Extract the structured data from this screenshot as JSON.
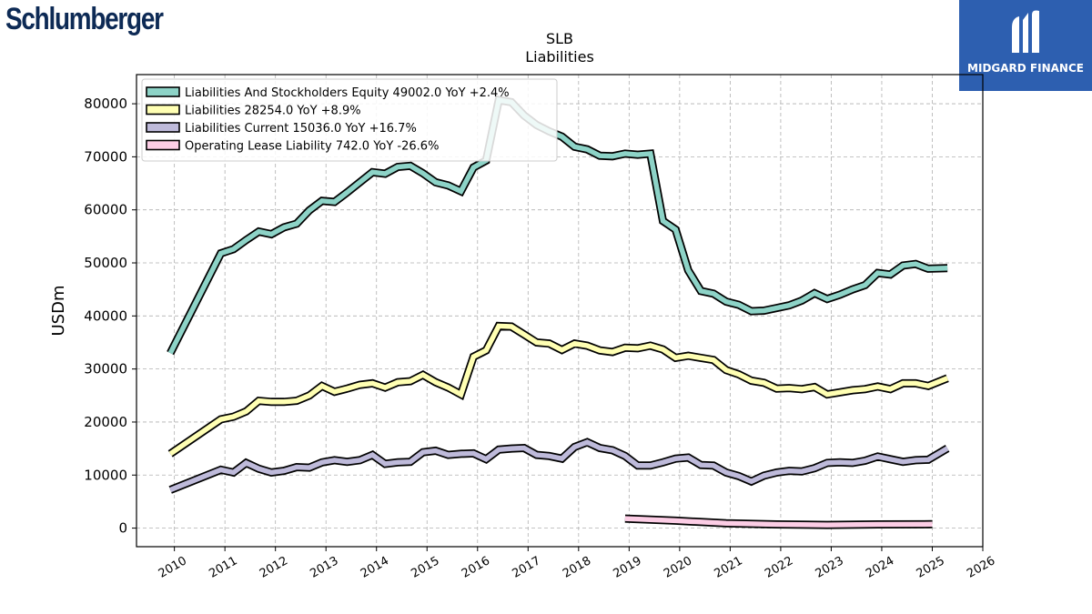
{
  "header": {
    "company_logo_text": "Schlumberger",
    "company_logo_color": "#0d2a55",
    "publisher_badge_text": "MIDGARD FINANCE",
    "publisher_badge_color": "#2d5fb0"
  },
  "chart_data": {
    "type": "line",
    "title": "SLB",
    "subtitle": "Liabilities",
    "xlabel": "",
    "ylabel": "USDm",
    "xlim": [
      2009.25,
      2026.0
    ],
    "ylim": [
      -3500,
      85500
    ],
    "x_ticks": [
      2010,
      2011,
      2012,
      2013,
      2014,
      2015,
      2016,
      2017,
      2018,
      2019,
      2020,
      2021,
      2022,
      2023,
      2024,
      2025,
      2026
    ],
    "y_ticks": [
      0,
      10000,
      20000,
      30000,
      40000,
      50000,
      60000,
      70000,
      80000
    ],
    "grid": true,
    "legend_position": "top-left",
    "series": [
      {
        "name": "Liabilities And Stockholders Equity",
        "legend_label": "Liabilities And Stockholders Equity  49002.0 YoY +2.4%",
        "color": "#8dd3c7",
        "points": [
          [
            2009.92,
            33000
          ],
          [
            2010.92,
            51800
          ],
          [
            2011.17,
            52600
          ],
          [
            2011.42,
            54300
          ],
          [
            2011.67,
            55900
          ],
          [
            2011.92,
            55400
          ],
          [
            2012.17,
            56700
          ],
          [
            2012.42,
            57400
          ],
          [
            2012.67,
            59900
          ],
          [
            2012.92,
            61700
          ],
          [
            2013.17,
            61500
          ],
          [
            2013.42,
            63300
          ],
          [
            2013.67,
            65200
          ],
          [
            2013.92,
            67100
          ],
          [
            2014.17,
            66800
          ],
          [
            2014.42,
            68100
          ],
          [
            2014.67,
            68300
          ],
          [
            2014.92,
            66900
          ],
          [
            2015.17,
            65200
          ],
          [
            2015.42,
            64600
          ],
          [
            2015.67,
            63500
          ],
          [
            2015.92,
            68000
          ],
          [
            2016.17,
            69300
          ],
          [
            2016.42,
            80700
          ],
          [
            2016.67,
            80300
          ],
          [
            2016.92,
            77800
          ],
          [
            2017.17,
            76000
          ],
          [
            2017.42,
            74800
          ],
          [
            2017.67,
            73800
          ],
          [
            2017.92,
            71900
          ],
          [
            2018.17,
            71400
          ],
          [
            2018.42,
            70200
          ],
          [
            2018.67,
            70100
          ],
          [
            2018.92,
            70600
          ],
          [
            2019.17,
            70400
          ],
          [
            2019.42,
            70600
          ],
          [
            2019.67,
            57900
          ],
          [
            2019.92,
            56300
          ],
          [
            2020.17,
            48600
          ],
          [
            2020.42,
            44700
          ],
          [
            2020.67,
            44200
          ],
          [
            2020.92,
            42700
          ],
          [
            2021.17,
            42100
          ],
          [
            2021.42,
            40900
          ],
          [
            2021.67,
            41000
          ],
          [
            2021.92,
            41500
          ],
          [
            2022.17,
            42000
          ],
          [
            2022.42,
            42900
          ],
          [
            2022.67,
            44300
          ],
          [
            2022.92,
            43200
          ],
          [
            2023.17,
            44000
          ],
          [
            2023.42,
            45000
          ],
          [
            2023.67,
            45800
          ],
          [
            2023.92,
            48100
          ],
          [
            2024.17,
            47800
          ],
          [
            2024.42,
            49500
          ],
          [
            2024.67,
            49800
          ],
          [
            2024.92,
            48900
          ],
          [
            2025.3,
            49002
          ]
        ]
      },
      {
        "name": "Liabilities",
        "legend_label": "Liabilities  28254.0 YoY +8.9%",
        "color": "#ffffb3",
        "points": [
          [
            2009.92,
            14000
          ],
          [
            2010.92,
            20500
          ],
          [
            2011.17,
            21000
          ],
          [
            2011.42,
            22000
          ],
          [
            2011.67,
            24000
          ],
          [
            2011.92,
            23800
          ],
          [
            2012.17,
            23800
          ],
          [
            2012.42,
            24000
          ],
          [
            2012.67,
            25000
          ],
          [
            2012.92,
            26800
          ],
          [
            2013.17,
            25700
          ],
          [
            2013.42,
            26300
          ],
          [
            2013.67,
            27000
          ],
          [
            2013.92,
            27300
          ],
          [
            2014.17,
            26500
          ],
          [
            2014.42,
            27500
          ],
          [
            2014.67,
            27700
          ],
          [
            2014.92,
            28900
          ],
          [
            2015.17,
            27500
          ],
          [
            2015.42,
            26500
          ],
          [
            2015.67,
            25200
          ],
          [
            2015.92,
            32300
          ],
          [
            2016.17,
            33500
          ],
          [
            2016.42,
            38100
          ],
          [
            2016.67,
            38000
          ],
          [
            2016.92,
            36500
          ],
          [
            2017.17,
            35000
          ],
          [
            2017.42,
            34800
          ],
          [
            2017.67,
            33600
          ],
          [
            2017.92,
            34800
          ],
          [
            2018.17,
            34400
          ],
          [
            2018.42,
            33500
          ],
          [
            2018.67,
            33200
          ],
          [
            2018.92,
            34000
          ],
          [
            2019.17,
            33900
          ],
          [
            2019.42,
            34400
          ],
          [
            2019.67,
            33700
          ],
          [
            2019.92,
            32100
          ],
          [
            2020.17,
            32500
          ],
          [
            2020.42,
            32100
          ],
          [
            2020.67,
            31700
          ],
          [
            2020.92,
            29800
          ],
          [
            2021.17,
            29000
          ],
          [
            2021.42,
            27800
          ],
          [
            2021.67,
            27400
          ],
          [
            2021.92,
            26300
          ],
          [
            2022.17,
            26400
          ],
          [
            2022.42,
            26200
          ],
          [
            2022.67,
            26600
          ],
          [
            2022.92,
            25200
          ],
          [
            2023.17,
            25600
          ],
          [
            2023.42,
            26000
          ],
          [
            2023.67,
            26200
          ],
          [
            2023.92,
            26700
          ],
          [
            2024.17,
            26200
          ],
          [
            2024.42,
            27300
          ],
          [
            2024.67,
            27300
          ],
          [
            2024.92,
            26800
          ],
          [
            2025.3,
            28254
          ]
        ]
      },
      {
        "name": "Liabilities Current",
        "legend_label": "Liabilities Current  15036.0 YoY +16.7%",
        "color": "#bebada",
        "points": [
          [
            2009.92,
            7200
          ],
          [
            2010.92,
            11000
          ],
          [
            2011.17,
            10500
          ],
          [
            2011.42,
            12300
          ],
          [
            2011.67,
            11200
          ],
          [
            2011.92,
            10500
          ],
          [
            2012.17,
            10800
          ],
          [
            2012.42,
            11500
          ],
          [
            2012.67,
            11400
          ],
          [
            2012.92,
            12400
          ],
          [
            2013.17,
            12800
          ],
          [
            2013.42,
            12500
          ],
          [
            2013.67,
            12800
          ],
          [
            2013.92,
            13800
          ],
          [
            2014.17,
            12100
          ],
          [
            2014.42,
            12400
          ],
          [
            2014.67,
            12500
          ],
          [
            2014.92,
            14300
          ],
          [
            2015.17,
            14600
          ],
          [
            2015.42,
            13800
          ],
          [
            2015.67,
            14000
          ],
          [
            2015.92,
            14100
          ],
          [
            2016.17,
            13000
          ],
          [
            2016.42,
            14800
          ],
          [
            2016.67,
            15000
          ],
          [
            2016.92,
            15100
          ],
          [
            2017.17,
            13800
          ],
          [
            2017.42,
            13600
          ],
          [
            2017.67,
            13100
          ],
          [
            2017.92,
            15300
          ],
          [
            2018.17,
            16200
          ],
          [
            2018.42,
            15100
          ],
          [
            2018.67,
            14700
          ],
          [
            2018.92,
            13600
          ],
          [
            2019.17,
            11800
          ],
          [
            2019.42,
            11800
          ],
          [
            2019.67,
            12400
          ],
          [
            2019.92,
            13100
          ],
          [
            2020.17,
            13300
          ],
          [
            2020.42,
            11900
          ],
          [
            2020.67,
            11800
          ],
          [
            2020.92,
            10500
          ],
          [
            2021.17,
            9800
          ],
          [
            2021.42,
            8800
          ],
          [
            2021.67,
            9900
          ],
          [
            2021.92,
            10500
          ],
          [
            2022.17,
            10800
          ],
          [
            2022.42,
            10700
          ],
          [
            2022.67,
            11300
          ],
          [
            2022.92,
            12300
          ],
          [
            2023.17,
            12400
          ],
          [
            2023.42,
            12300
          ],
          [
            2023.67,
            12700
          ],
          [
            2023.92,
            13500
          ],
          [
            2024.17,
            13000
          ],
          [
            2024.42,
            12500
          ],
          [
            2024.67,
            12800
          ],
          [
            2024.92,
            12900
          ],
          [
            2025.3,
            15036
          ]
        ]
      },
      {
        "name": "Operating Lease Liability",
        "legend_label": "Operating Lease Liability  742.0 YoY -26.6%",
        "color": "#fccde5",
        "points": [
          [
            2018.92,
            1800
          ],
          [
            2019.92,
            1400
          ],
          [
            2020.92,
            900
          ],
          [
            2021.92,
            700
          ],
          [
            2022.92,
            600
          ],
          [
            2023.92,
            700
          ],
          [
            2025.0,
            742
          ]
        ]
      }
    ]
  }
}
